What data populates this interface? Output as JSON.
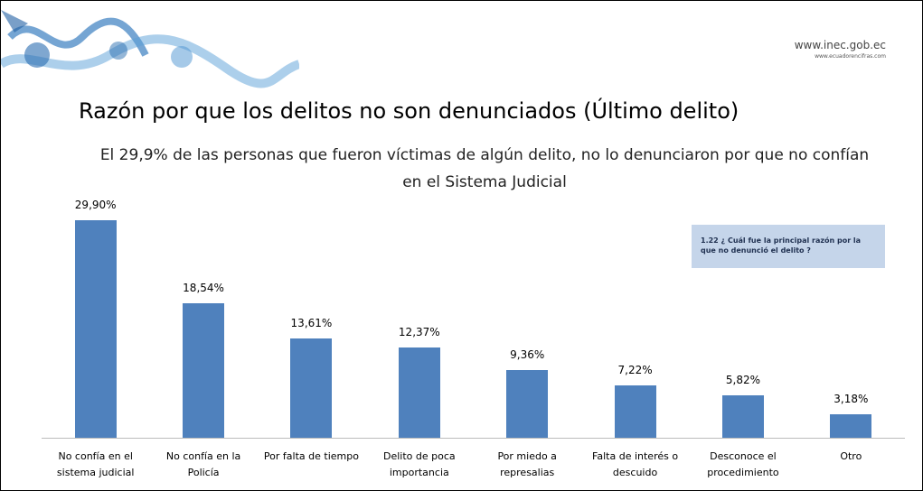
{
  "header": {
    "url": "www.inec.gob.ec",
    "url_secondary": "www.ecuadorencifras.com"
  },
  "chart_data": {
    "type": "bar",
    "title": "Razón por que los delitos no son denunciados (Último delito)",
    "subtitle": "El 29,9% de las personas que fueron víctimas de algún delito, no lo denunciaron por que no confían en el Sistema Judicial",
    "annotations": [
      "1.22 ¿ Cuál fue la principal razón por la que no denunció el delito ?"
    ],
    "categories": [
      "No confía en el sistema judicial",
      "No confía en la Policía",
      "Por falta de tiempo",
      "Delito de poca importancia",
      "Por miedo a represalias",
      "Falta de interés o descuido",
      "Desconoce el procedimiento",
      "Otro"
    ],
    "values": [
      29.9,
      18.54,
      13.61,
      12.37,
      9.36,
      7.22,
      5.82,
      3.18
    ],
    "value_labels": [
      "29,90%",
      "18,54%",
      "13,61%",
      "12,37%",
      "9,36%",
      "7,22%",
      "5,82%",
      "3,18%"
    ],
    "color": "#4f81bd"
  }
}
